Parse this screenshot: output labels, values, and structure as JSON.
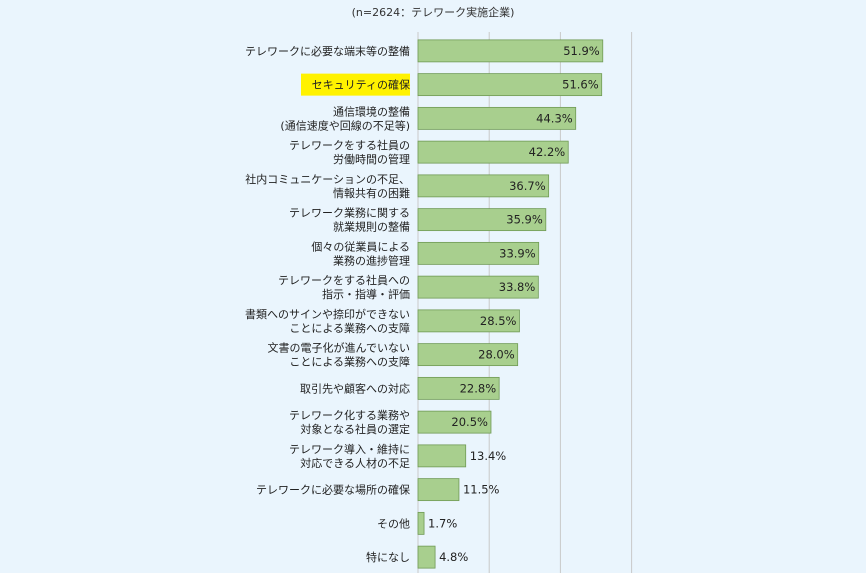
{
  "note": "(n=2624：テレワーク実施企業)",
  "chart_data": {
    "type": "bar",
    "orientation": "horizontal",
    "xlim": [
      0,
      100
    ],
    "grid": true,
    "highlight_category_index": 1,
    "colors": {
      "bar": "#a8cf8e",
      "bar_stroke": "#6f9a55",
      "highlight": "#fff200",
      "grid": "#c9c9c9",
      "background": "#eaf5fd"
    },
    "categories": [
      [
        "テレワークに必要な端末等の整備"
      ],
      [
        "セキュリティの確保"
      ],
      [
        "通信環境の整備",
        "(通信速度や回線の不足等)"
      ],
      [
        "テレワークをする社員の",
        "労働時間の管理"
      ],
      [
        "社内コミュニケーションの不足、",
        "情報共有の困難"
      ],
      [
        "テレワーク業務に関する",
        "就業規則の整備"
      ],
      [
        "個々の従業員による",
        "業務の進捗管理"
      ],
      [
        "テレワークをする社員への",
        "指示・指導・評価"
      ],
      [
        "書類へのサインや捺印ができない",
        "ことによる業務への支障"
      ],
      [
        "文書の電子化が進んでいない",
        "ことによる業務への支障"
      ],
      [
        "取引先や顧客への対応"
      ],
      [
        "テレワーク化する業務や",
        "対象となる社員の選定"
      ],
      [
        "テレワーク導入・維持に",
        "対応できる人材の不足"
      ],
      [
        "テレワークに必要な場所の確保"
      ],
      [
        "その他"
      ],
      [
        "特になし"
      ]
    ],
    "values": [
      51.9,
      51.6,
      44.3,
      42.2,
      36.7,
      35.9,
      33.9,
      33.8,
      28.5,
      28.0,
      22.8,
      20.5,
      13.4,
      11.5,
      1.7,
      4.8
    ],
    "value_labels": [
      "51.9%",
      "51.6%",
      "44.3%",
      "42.2%",
      "36.7%",
      "35.9%",
      "33.9%",
      "33.8%",
      "28.5%",
      "28.0%",
      "22.8%",
      "20.5%",
      "13.4%",
      "11.5%",
      "1.7%",
      "4.8%"
    ]
  }
}
